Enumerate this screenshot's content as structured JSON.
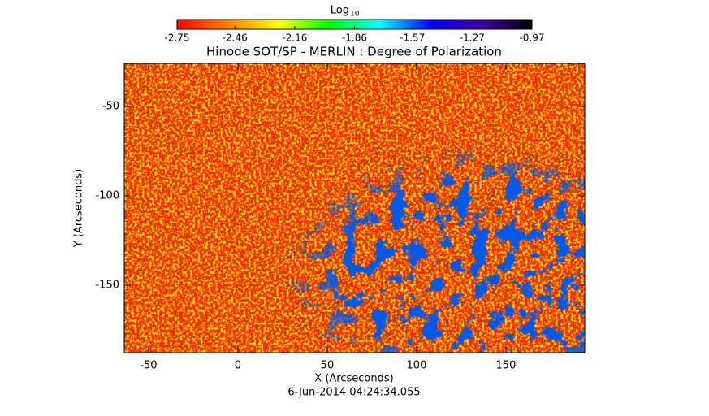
{
  "chart_data": {
    "type": "image",
    "title": "Hinode SOT/SP - MERLIN : Degree of Polarization",
    "xlabel": "X (Arcseconds)",
    "ylabel": "Y (Arcseconds)",
    "footer": "6-Jun-2014 04:24:34.055",
    "xlim": [
      -63.6,
      194.1
    ],
    "ylim": [
      -187.7,
      -25.9
    ],
    "xticks": [
      -50,
      0,
      50,
      100,
      150
    ],
    "yticks": [
      -50,
      -100,
      -150
    ],
    "colorbar": {
      "label": "Log",
      "label_subscript": "10",
      "lim": [
        -2.75,
        -0.97
      ],
      "ticks": [
        -2.75,
        -2.46,
        -2.16,
        -1.86,
        -1.57,
        -1.27,
        -0.97
      ],
      "colormap": [
        "#ff0000",
        "#ff8000",
        "#ffff00",
        "#00ff00",
        "#00ffff",
        "#0000ff",
        "#4000a0",
        "#000000"
      ]
    }
  }
}
